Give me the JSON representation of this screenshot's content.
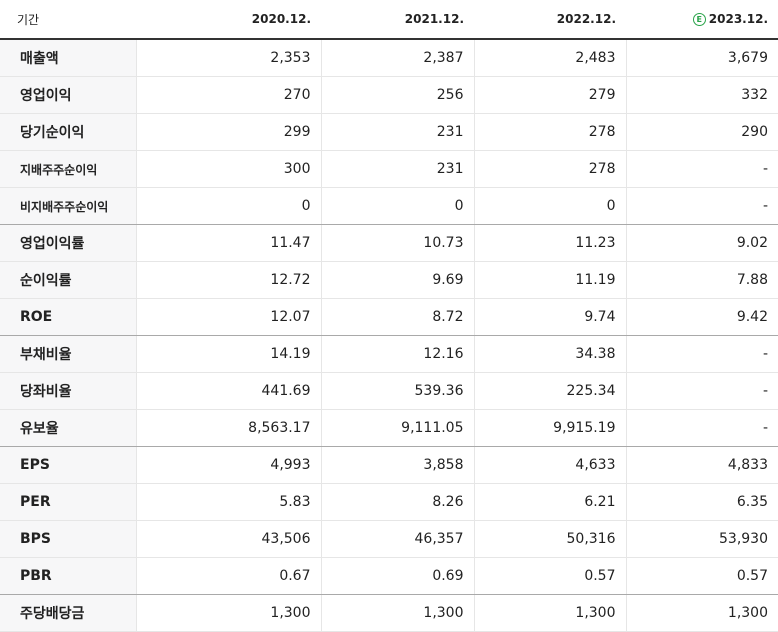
{
  "header": {
    "period_label": "기간",
    "years": [
      "2020.12.",
      "2021.12.",
      "2022.12.",
      "2023.12."
    ],
    "estimate_mark": "E"
  },
  "rows": [
    {
      "label": "매출액",
      "values": [
        "2,353",
        "2,387",
        "2,483",
        "3,679"
      ]
    },
    {
      "label": "영업이익",
      "values": [
        "270",
        "256",
        "279",
        "332"
      ]
    },
    {
      "label": "당기순이익",
      "values": [
        "299",
        "231",
        "278",
        "290"
      ]
    },
    {
      "label": "지배주주순이익",
      "values": [
        "300",
        "231",
        "278",
        "-"
      ]
    },
    {
      "label": "비지배주주순이익",
      "values": [
        "0",
        "0",
        "0",
        "-"
      ]
    },
    {
      "label": "영업이익률",
      "values": [
        "11.47",
        "10.73",
        "11.23",
        "9.02"
      ]
    },
    {
      "label": "순이익률",
      "values": [
        "12.72",
        "9.69",
        "11.19",
        "7.88"
      ]
    },
    {
      "label": "ROE",
      "values": [
        "12.07",
        "8.72",
        "9.74",
        "9.42"
      ]
    },
    {
      "label": "부채비율",
      "values": [
        "14.19",
        "12.16",
        "34.38",
        "-"
      ]
    },
    {
      "label": "당좌비율",
      "values": [
        "441.69",
        "539.36",
        "225.34",
        "-"
      ]
    },
    {
      "label": "유보율",
      "values": [
        "8,563.17",
        "9,111.05",
        "9,915.19",
        "-"
      ]
    },
    {
      "label": "EPS",
      "values": [
        "4,993",
        "3,858",
        "4,633",
        "4,833"
      ]
    },
    {
      "label": "PER",
      "values": [
        "5.83",
        "8.26",
        "6.21",
        "6.35"
      ]
    },
    {
      "label": "BPS",
      "values": [
        "43,506",
        "46,357",
        "50,316",
        "53,930"
      ]
    },
    {
      "label": "PBR",
      "values": [
        "0.67",
        "0.69",
        "0.57",
        "0.57"
      ]
    },
    {
      "label": "주당배당금",
      "values": [
        "1,300",
        "1,300",
        "1,300",
        "1,300"
      ]
    }
  ],
  "colors": {
    "estimate_green": "#2aa34a",
    "label_background": "#f7f7f8",
    "header_rule": "#333333"
  }
}
